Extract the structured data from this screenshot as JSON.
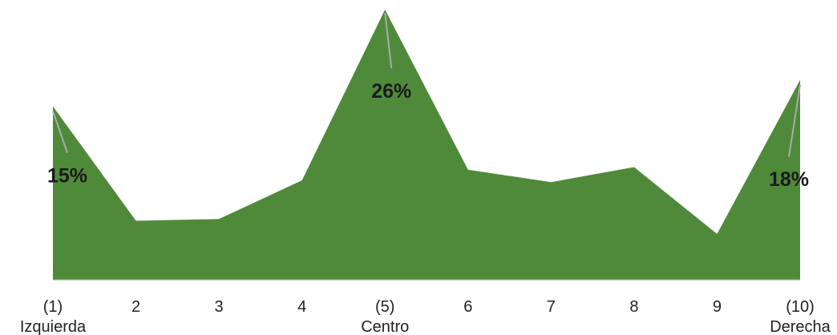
{
  "chart_data": {
    "type": "area",
    "x": [
      1,
      2,
      3,
      4,
      5,
      6,
      7,
      8,
      9,
      10
    ],
    "tick_labels": [
      [
        "(1)",
        "Izquierda"
      ],
      [
        "2"
      ],
      [
        "3"
      ],
      [
        "4"
      ],
      [
        "(5)",
        "Centro"
      ],
      [
        "6"
      ],
      [
        "7"
      ],
      [
        "8"
      ],
      [
        "9"
      ],
      [
        "(10)",
        "Derecha"
      ]
    ],
    "series": [
      {
        "values": [
          15,
          2,
          2.2,
          6.6,
          26,
          7.8,
          6.4,
          8.1,
          0.5,
          18
        ]
      }
    ],
    "data_labels": [
      {
        "index": 0,
        "text": "15%"
      },
      {
        "index": 4,
        "text": "26%"
      },
      {
        "index": 9,
        "text": "18%"
      }
    ],
    "ylim": [
      -4.7,
      26
    ],
    "fill_color": "#4f8a3b",
    "axis_color": "#cfcfcf",
    "grid": false,
    "legend": "none"
  }
}
